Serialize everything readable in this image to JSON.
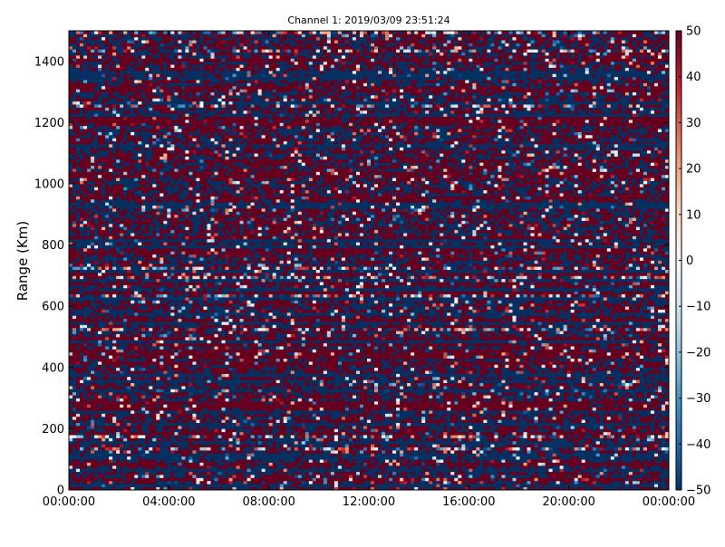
{
  "chart_data": {
    "type": "heatmap",
    "title": "Channel 1: 2019/03/09 23:51:24",
    "xlabel": "",
    "ylabel": "Range (Km)",
    "x_ticks": [
      "00:00:00",
      "04:00:00",
      "08:00:00",
      "12:00:00",
      "16:00:00",
      "20:00:00",
      "00:00:00"
    ],
    "x_range": [
      "00:00:00",
      "00:00:00 (+24h)"
    ],
    "y_ticks": [
      0,
      200,
      400,
      600,
      800,
      1000,
      1200,
      1400
    ],
    "ylim": [
      0,
      1500
    ],
    "colorbar": {
      "ticks": [
        50,
        40,
        30,
        20,
        10,
        0,
        -10,
        -20,
        -30,
        -40,
        -50
      ],
      "range": [
        -50,
        50
      ],
      "colormap": "red-white-blue (diverging)",
      "colors": {
        "high": "#67001f",
        "mid": "#f7f7f7",
        "low": "#053061"
      }
    },
    "grid": false,
    "description_of_values": "Dense noise-like field; values mostly saturated near +50 (dark red) or -50 (dark blue) with horizontal banding by range gate"
  }
}
